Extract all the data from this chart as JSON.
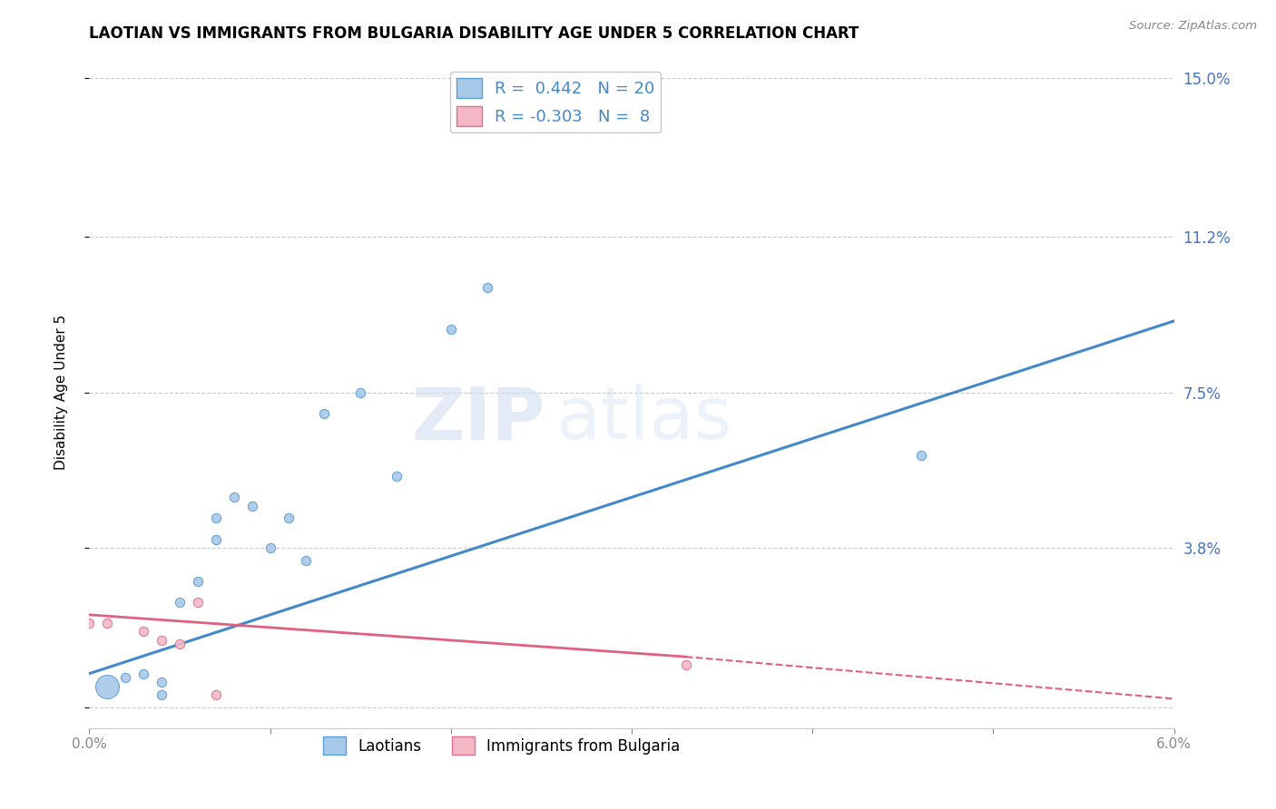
{
  "title": "LAOTIAN VS IMMIGRANTS FROM BULGARIA DISABILITY AGE UNDER 5 CORRELATION CHART",
  "source_text": "Source: ZipAtlas.com",
  "ylabel": "Disability Age Under 5",
  "xmin": 0.0,
  "xmax": 0.06,
  "ymin": -0.005,
  "ymax": 0.155,
  "yticks": [
    0.0,
    0.038,
    0.075,
    0.112,
    0.15
  ],
  "ytick_labels": [
    "",
    "3.8%",
    "7.5%",
    "11.2%",
    "15.0%"
  ],
  "xticks": [
    0.0,
    0.01,
    0.02,
    0.03,
    0.04,
    0.05,
    0.06
  ],
  "xtick_labels": [
    "0.0%",
    "",
    "",
    "",
    "",
    "",
    "6.0%"
  ],
  "legend_r1": "R =  0.442",
  "legend_n1": "N = 20",
  "legend_r2": "R = -0.303",
  "legend_n2": "N =  8",
  "blue_color": "#a8c8e8",
  "blue_edge": "#5a9fd4",
  "pink_color": "#f4b8c4",
  "pink_edge": "#e07090",
  "trendline_blue": "#4488cc",
  "trendline_pink": "#e06080",
  "watermark_zip": "ZIP",
  "watermark_atlas": "atlas",
  "laotian_x": [
    0.001,
    0.002,
    0.003,
    0.004,
    0.004,
    0.005,
    0.006,
    0.007,
    0.007,
    0.008,
    0.009,
    0.01,
    0.011,
    0.012,
    0.013,
    0.015,
    0.017,
    0.02,
    0.022,
    0.046
  ],
  "laotian_y": [
    0.005,
    0.007,
    0.008,
    0.003,
    0.006,
    0.025,
    0.03,
    0.04,
    0.045,
    0.05,
    0.048,
    0.038,
    0.045,
    0.035,
    0.07,
    0.075,
    0.055,
    0.09,
    0.1,
    0.06
  ],
  "laotian_size_big": 350,
  "laotian_size_small": 55,
  "laotian_big_idx": 0,
  "bulgaria_x": [
    0.0,
    0.001,
    0.003,
    0.004,
    0.005,
    0.006,
    0.007,
    0.033
  ],
  "bulgaria_y": [
    0.02,
    0.02,
    0.018,
    0.016,
    0.015,
    0.025,
    0.003,
    0.01
  ],
  "bulgaria_size": 55,
  "blue_trend_x0": 0.0,
  "blue_trend_x1": 0.06,
  "blue_trend_y0": 0.008,
  "blue_trend_y1": 0.092,
  "pink_trend_x0": 0.0,
  "pink_trend_xsolid": 0.033,
  "pink_trend_x1": 0.06,
  "pink_trend_y0": 0.022,
  "pink_trend_ysolid": 0.012,
  "pink_trend_y1": 0.002,
  "background_color": "#ffffff",
  "grid_color": "#cccccc",
  "title_fontsize": 12,
  "tick_label_color": "#4472c4"
}
